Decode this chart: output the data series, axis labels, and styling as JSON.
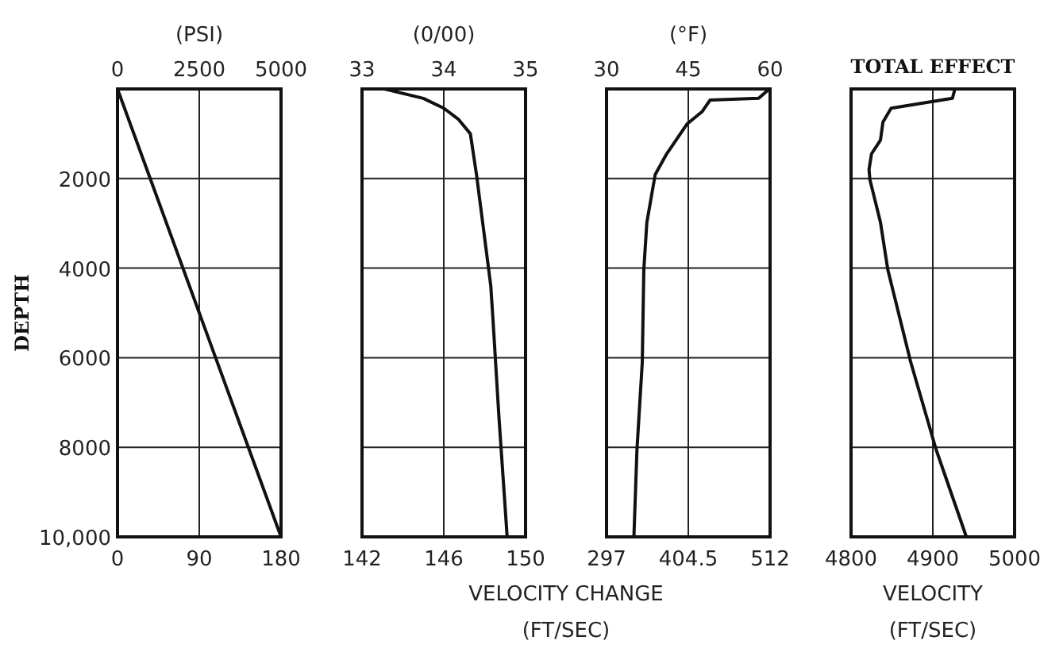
{
  "chart_data": [
    {
      "type": "line",
      "x2label": "(PSI)",
      "ylabel": "DEPTH",
      "xlim": [
        0,
        180
      ],
      "xticks": [
        0,
        90,
        180
      ],
      "x2lim": [
        0,
        5000
      ],
      "x2ticks": [
        0,
        2500,
        5000
      ],
      "ylim": [
        10000,
        0
      ],
      "yticks": [
        2000,
        4000,
        6000,
        8000,
        {
          "value": 10000,
          "label": "10,000"
        }
      ],
      "grid": true,
      "series": [
        {
          "color": "#111111",
          "x": [
            0,
            180
          ],
          "values": [
            0,
            10000
          ]
        }
      ]
    },
    {
      "type": "line",
      "x2label": "(0/00)",
      "xlabel": "VELOCITY CHANGE\n(FT/SEC)",
      "xlim": [
        142,
        150
      ],
      "xticks": [
        142,
        146,
        150
      ],
      "x2lim": [
        33,
        35
      ],
      "x2ticks": [
        33,
        34,
        35
      ],
      "ylim": [
        10000,
        0
      ],
      "yticks": [
        2000,
        4000,
        6000,
        8000,
        10000
      ],
      "grid": true,
      "tick_labels": "x",
      "series": [
        {
          "color": "#111111",
          "x": [
            143.1,
            145.0,
            146.0,
            146.7,
            147.3,
            147.6,
            148.1,
            148.3,
            148.4,
            148.7,
            149.1
          ],
          "values": [
            0,
            210,
            430,
            670,
            1000,
            1910,
            3690,
            4400,
            5100,
            7340,
            10000
          ]
        }
      ]
    },
    {
      "type": "line",
      "x2label": "(°F)",
      "xlim": [
        297,
        512
      ],
      "xticks": [
        297,
        404.5,
        512
      ],
      "x2lim": [
        30,
        60
      ],
      "x2ticks": [
        30,
        45,
        60
      ],
      "ylim": [
        10000,
        0
      ],
      "yticks": [
        2000,
        4000,
        6000,
        8000,
        10000
      ],
      "grid": true,
      "tick_labels": "x",
      "series": [
        {
          "color": "#111111",
          "x": [
            511,
            497,
            433,
            423,
            403,
            376,
            361,
            350,
            346,
            344,
            337,
            333
          ],
          "values": [
            0,
            210,
            250,
            500,
            780,
            1450,
            1910,
            2980,
            4040,
            6100,
            8050,
            10000
          ]
        }
      ]
    },
    {
      "type": "line",
      "title": "TOTAL EFFECT",
      "xlabel": "VELOCITY\n(FT/SEC)",
      "xlim": [
        4800,
        5000
      ],
      "xticks": [
        4800,
        4900,
        5000
      ],
      "ylim": [
        10000,
        0
      ],
      "yticks": [
        2000,
        4000,
        6000,
        8000,
        10000
      ],
      "grid": true,
      "tick_labels": "x",
      "series": [
        {
          "color": "#111111",
          "x": [
            4927,
            4924,
            4849,
            4839,
            4836,
            4825,
            4822,
            4823,
            4836,
            4845,
            4873,
            4904,
            4941
          ],
          "values": [
            0,
            210,
            430,
            740,
            1140,
            1450,
            1800,
            2020,
            2980,
            4040,
            6100,
            8050,
            10000
          ]
        }
      ]
    }
  ]
}
